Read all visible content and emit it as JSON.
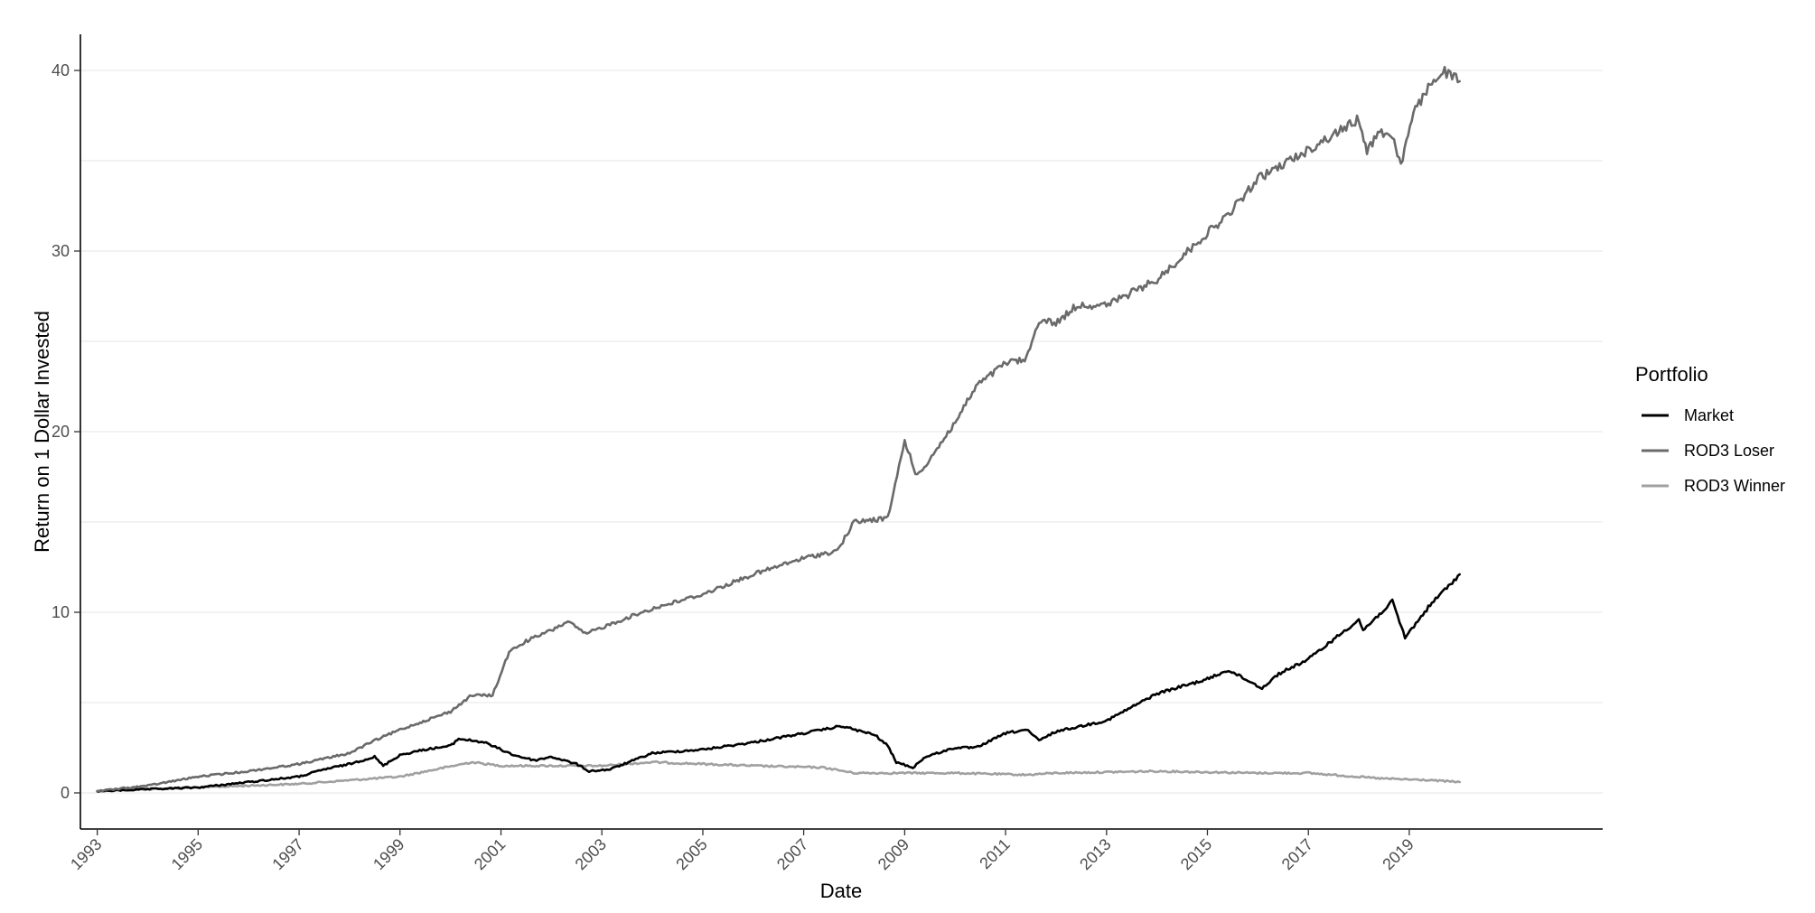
{
  "chart_data": {
    "type": "line",
    "xlabel": "Date",
    "ylabel": "Return on 1 Dollar Invested",
    "xlim": [
      "1992-09-01",
      "2022-11-01"
    ],
    "ylim": [
      -2,
      42
    ],
    "yticks": [
      0,
      10,
      20,
      30,
      40
    ],
    "ytick_labels": [
      "0",
      "10",
      "20",
      "30",
      "40"
    ],
    "xticks": [
      "1993-01-01",
      "1995-01-01",
      "1997-01-01",
      "1999-01-01",
      "2001-01-01",
      "2003-01-01",
      "2005-01-01",
      "2007-01-01",
      "2009-01-01",
      "2011-01-01",
      "2013-01-01",
      "2015-01-01",
      "2017-01-01",
      "2019-01-01"
    ],
    "xtick_labels": [
      "1993",
      "1995",
      "1997",
      "1999",
      "2001",
      "2003",
      "2005",
      "2007",
      "2009",
      "2011",
      "2013",
      "2015",
      "2017",
      "2019"
    ],
    "grid": "horizontal",
    "legend": {
      "title": "Portfolio",
      "position": "right",
      "entries": [
        "Market",
        "ROD3 Loser",
        "ROD3 Winner"
      ]
    },
    "series": [
      {
        "name": "Market",
        "color": "#000000",
        "points": [
          [
            "1993-01-01",
            0.1
          ],
          [
            "1994-01-01",
            0.2
          ],
          [
            "1995-01-01",
            0.3
          ],
          [
            "1996-01-01",
            0.6
          ],
          [
            "1997-01-01",
            0.9
          ],
          [
            "1997-07-01",
            1.3
          ],
          [
            "1998-01-01",
            1.6
          ],
          [
            "1998-07-01",
            2.0
          ],
          [
            "1998-09-01",
            1.5
          ],
          [
            "1999-01-01",
            2.1
          ],
          [
            "1999-07-01",
            2.4
          ],
          [
            "2000-01-01",
            2.6
          ],
          [
            "2000-03-01",
            3.0
          ],
          [
            "2000-09-01",
            2.8
          ],
          [
            "2001-01-01",
            2.4
          ],
          [
            "2001-04-01",
            2.1
          ],
          [
            "2001-09-01",
            1.8
          ],
          [
            "2002-01-01",
            2.0
          ],
          [
            "2002-07-01",
            1.6
          ],
          [
            "2002-10-01",
            1.2
          ],
          [
            "2003-03-01",
            1.3
          ],
          [
            "2004-01-01",
            2.2
          ],
          [
            "2005-01-01",
            2.4
          ],
          [
            "2006-01-01",
            2.8
          ],
          [
            "2007-01-01",
            3.3
          ],
          [
            "2007-10-01",
            3.7
          ],
          [
            "2008-06-01",
            3.2
          ],
          [
            "2008-09-01",
            2.6
          ],
          [
            "2008-11-01",
            1.7
          ],
          [
            "2009-03-01",
            1.4
          ],
          [
            "2009-06-01",
            2.0
          ],
          [
            "2010-01-01",
            2.5
          ],
          [
            "2010-06-01",
            2.5
          ],
          [
            "2011-01-01",
            3.3
          ],
          [
            "2011-06-01",
            3.5
          ],
          [
            "2011-09-01",
            2.9
          ],
          [
            "2012-01-01",
            3.4
          ],
          [
            "2013-01-01",
            4.0
          ],
          [
            "2014-01-01",
            5.5
          ],
          [
            "2015-01-01",
            6.3
          ],
          [
            "2015-06-01",
            6.8
          ],
          [
            "2016-02-01",
            5.8
          ],
          [
            "2016-06-01",
            6.6
          ],
          [
            "2017-01-01",
            7.4
          ],
          [
            "2018-01-01",
            9.6
          ],
          [
            "2018-02-01",
            9.0
          ],
          [
            "2018-09-01",
            10.6
          ],
          [
            "2018-12-01",
            8.6
          ],
          [
            "2019-06-01",
            10.4
          ],
          [
            "2020-01-01",
            12.1
          ]
        ]
      },
      {
        "name": "ROD3 Loser",
        "color": "#6a6a6a",
        "points": [
          [
            "1993-01-01",
            0.1
          ],
          [
            "1994-01-01",
            0.4
          ],
          [
            "1995-01-01",
            0.9
          ],
          [
            "1996-01-01",
            1.2
          ],
          [
            "1997-01-01",
            1.6
          ],
          [
            "1998-01-01",
            2.2
          ],
          [
            "1998-07-01",
            2.9
          ],
          [
            "1999-01-01",
            3.5
          ],
          [
            "2000-01-01",
            4.5
          ],
          [
            "2000-06-01",
            5.4
          ],
          [
            "2000-11-01",
            5.4
          ],
          [
            "2001-03-01",
            7.8
          ],
          [
            "2001-07-01",
            8.4
          ],
          [
            "2002-01-01",
            9.0
          ],
          [
            "2002-05-01",
            9.5
          ],
          [
            "2002-09-01",
            8.8
          ],
          [
            "2003-06-01",
            9.6
          ],
          [
            "2004-01-01",
            10.2
          ],
          [
            "2005-01-01",
            11.0
          ],
          [
            "2006-01-01",
            12.1
          ],
          [
            "2007-01-01",
            13.0
          ],
          [
            "2007-09-01",
            13.4
          ],
          [
            "2008-01-01",
            15.0
          ],
          [
            "2008-09-01",
            15.2
          ],
          [
            "2009-01-01",
            19.5
          ],
          [
            "2009-04-01",
            17.5
          ],
          [
            "2010-01-01",
            20.5
          ],
          [
            "2010-06-01",
            22.5
          ],
          [
            "2011-01-01",
            23.8
          ],
          [
            "2011-06-01",
            24.0
          ],
          [
            "2011-09-01",
            26.2
          ],
          [
            "2012-01-01",
            26.0
          ],
          [
            "2012-06-01",
            27.0
          ],
          [
            "2013-01-01",
            27.0
          ],
          [
            "2014-01-01",
            28.4
          ],
          [
            "2015-01-01",
            31.0
          ],
          [
            "2015-06-01",
            32.0
          ],
          [
            "2016-01-01",
            34.0
          ],
          [
            "2017-01-01",
            35.6
          ],
          [
            "2018-01-01",
            37.3
          ],
          [
            "2018-03-01",
            35.6
          ],
          [
            "2018-06-01",
            36.6
          ],
          [
            "2018-09-01",
            36.4
          ],
          [
            "2018-11-01",
            34.8
          ],
          [
            "2019-02-01",
            37.6
          ],
          [
            "2019-06-01",
            39.2
          ],
          [
            "2019-09-01",
            40.0
          ],
          [
            "2020-01-01",
            39.4
          ]
        ]
      },
      {
        "name": "ROD3 Winner",
        "color": "#a0a0a0",
        "points": [
          [
            "1993-01-01",
            0.1
          ],
          [
            "1995-01-01",
            0.3
          ],
          [
            "1997-01-01",
            0.5
          ],
          [
            "1999-01-01",
            0.9
          ],
          [
            "2000-06-01",
            1.7
          ],
          [
            "2001-01-01",
            1.5
          ],
          [
            "2003-01-01",
            1.5
          ],
          [
            "2004-01-01",
            1.7
          ],
          [
            "2006-01-01",
            1.5
          ],
          [
            "2007-06-01",
            1.4
          ],
          [
            "2008-01-01",
            1.1
          ],
          [
            "2009-01-01",
            1.1
          ],
          [
            "2010-01-01",
            1.1
          ],
          [
            "2011-06-01",
            1.0
          ],
          [
            "2012-01-01",
            1.1
          ],
          [
            "2014-01-01",
            1.2
          ],
          [
            "2016-01-01",
            1.1
          ],
          [
            "2017-01-01",
            1.1
          ],
          [
            "2018-06-01",
            0.8
          ],
          [
            "2019-06-01",
            0.7
          ],
          [
            "2020-01-01",
            0.6
          ]
        ]
      }
    ]
  }
}
